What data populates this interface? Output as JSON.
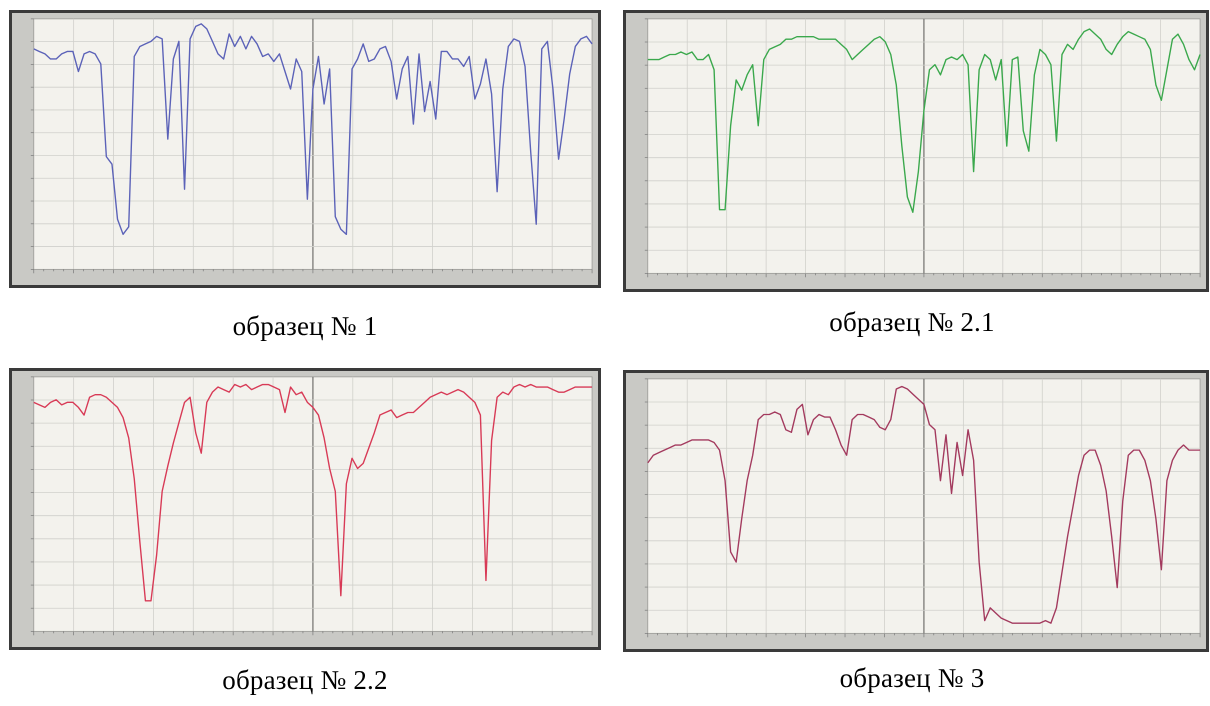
{
  "captions": [
    "образец № 1",
    "образец № 2.1",
    "образец № 2.2",
    "образец № 3"
  ],
  "chart_data": [
    {
      "type": "line",
      "title": "образец № 1",
      "ylim": [
        0,
        100
      ],
      "grid": true,
      "series": [
        {
          "color": "#5b62b8",
          "x": [
            0,
            1,
            2,
            3,
            4,
            5,
            6,
            7,
            8,
            9,
            10,
            11,
            12,
            13,
            14,
            15,
            16,
            17,
            18,
            19,
            20,
            21,
            22,
            23,
            24,
            25,
            26,
            27,
            28,
            29,
            30,
            31,
            32,
            33,
            34,
            35,
            36,
            37,
            38,
            39,
            40,
            41,
            42,
            43,
            44,
            45,
            46,
            47,
            48,
            49,
            50,
            51,
            52,
            53,
            54,
            55,
            56,
            57,
            58,
            59,
            60,
            61,
            62,
            63,
            64,
            65,
            66,
            67,
            68,
            69,
            70,
            71,
            72,
            73,
            74,
            75,
            76,
            77,
            78,
            79,
            80,
            81,
            82,
            83,
            84,
            85,
            86,
            87,
            88,
            89,
            90,
            91,
            92,
            93,
            94,
            95,
            96,
            97,
            98,
            99,
            100
          ],
          "values": [
            88,
            87,
            86,
            84,
            84,
            86,
            87,
            87,
            79,
            86,
            87,
            86,
            82,
            45,
            42,
            20,
            14,
            17,
            85,
            89,
            90,
            91,
            93,
            92,
            52,
            84,
            91,
            32,
            92,
            97,
            98,
            96,
            91,
            86,
            84,
            94,
            89,
            93,
            88,
            93,
            90,
            85,
            86,
            83,
            86,
            79,
            72,
            84,
            79,
            28,
            72,
            85,
            66,
            80,
            21,
            16,
            14,
            80,
            84,
            90,
            83,
            84,
            88,
            89,
            83,
            68,
            80,
            85,
            58,
            86,
            63,
            75,
            60,
            87,
            87,
            84,
            84,
            81,
            85,
            68,
            74,
            84,
            70,
            31,
            72,
            89,
            92,
            91,
            81,
            47,
            18,
            88,
            91,
            72,
            44,
            60,
            78,
            89,
            92,
            93,
            90
          ]
        }
      ]
    },
    {
      "type": "line",
      "title": "образец № 2.1",
      "ylim": [
        0,
        100
      ],
      "grid": true,
      "series": [
        {
          "color": "#3aa84c",
          "x": [
            0,
            1,
            2,
            3,
            4,
            5,
            6,
            7,
            8,
            9,
            10,
            11,
            12,
            13,
            14,
            15,
            16,
            17,
            18,
            19,
            20,
            21,
            22,
            23,
            24,
            25,
            26,
            27,
            28,
            29,
            30,
            31,
            32,
            33,
            34,
            35,
            36,
            37,
            38,
            39,
            40,
            41,
            42,
            43,
            44,
            45,
            46,
            47,
            48,
            49,
            50,
            51,
            52,
            53,
            54,
            55,
            56,
            57,
            58,
            59,
            60,
            61,
            62,
            63,
            64,
            65,
            66,
            67,
            68,
            69,
            70,
            71,
            72,
            73,
            74,
            75,
            76,
            77,
            78,
            79,
            80,
            81,
            82,
            83,
            84,
            85,
            86,
            87,
            88,
            89,
            90,
            91,
            92,
            93,
            94,
            95,
            96,
            97,
            98,
            99,
            100
          ],
          "values": [
            84,
            84,
            84,
            85,
            86,
            86,
            87,
            86,
            87,
            84,
            84,
            86,
            80,
            25,
            25,
            58,
            76,
            72,
            78,
            82,
            58,
            84,
            88,
            89,
            90,
            92,
            92,
            93,
            93,
            93,
            93,
            92,
            92,
            92,
            92,
            90,
            88,
            84,
            86,
            88,
            90,
            92,
            93,
            91,
            86,
            74,
            50,
            30,
            24,
            40,
            64,
            80,
            82,
            78,
            84,
            85,
            84,
            86,
            82,
            40,
            80,
            86,
            84,
            76,
            84,
            50,
            84,
            85,
            56,
            48,
            78,
            88,
            86,
            82,
            52,
            86,
            90,
            88,
            92,
            95,
            96,
            94,
            92,
            88,
            86,
            90,
            93,
            95,
            94,
            93,
            92,
            88,
            74,
            68,
            80,
            92,
            94,
            90,
            84,
            80,
            86
          ]
        }
      ]
    },
    {
      "type": "line",
      "title": "образец № 2.2",
      "ylim": [
        0,
        100
      ],
      "grid": true,
      "series": [
        {
          "color": "#d83a56",
          "x": [
            0,
            1,
            2,
            3,
            4,
            5,
            6,
            7,
            8,
            9,
            10,
            11,
            12,
            13,
            14,
            15,
            16,
            17,
            18,
            19,
            20,
            21,
            22,
            23,
            24,
            25,
            26,
            27,
            28,
            29,
            30,
            31,
            32,
            33,
            34,
            35,
            36,
            37,
            38,
            39,
            40,
            41,
            42,
            43,
            44,
            45,
            46,
            47,
            48,
            49,
            50,
            51,
            52,
            53,
            54,
            55,
            56,
            57,
            58,
            59,
            60,
            61,
            62,
            63,
            64,
            65,
            66,
            67,
            68,
            69,
            70,
            71,
            72,
            73,
            74,
            75,
            76,
            77,
            78,
            79,
            80,
            81,
            82,
            83,
            84,
            85,
            86,
            87,
            88,
            89,
            90,
            91,
            92,
            93,
            94,
            95,
            96,
            97,
            98,
            99,
            100
          ],
          "values": [
            90,
            89,
            88,
            90,
            91,
            89,
            90,
            90,
            88,
            85,
            92,
            93,
            93,
            92,
            90,
            88,
            84,
            76,
            60,
            35,
            12,
            12,
            30,
            55,
            65,
            74,
            82,
            90,
            92,
            78,
            70,
            90,
            94,
            96,
            95,
            94,
            97,
            96,
            97,
            95,
            96,
            97,
            97,
            96,
            95,
            86,
            96,
            93,
            94,
            90,
            88,
            85,
            76,
            64,
            55,
            14,
            58,
            68,
            64,
            66,
            72,
            78,
            85,
            86,
            87,
            84,
            85,
            86,
            86,
            88,
            90,
            92,
            93,
            94,
            93,
            94,
            95,
            94,
            92,
            90,
            85,
            20,
            75,
            92,
            94,
            93,
            96,
            97,
            96,
            97,
            96,
            96,
            96,
            95,
            94,
            94,
            95,
            96,
            96,
            96,
            96
          ]
        }
      ]
    },
    {
      "type": "line",
      "title": "образец № 3",
      "ylim": [
        0,
        100
      ],
      "grid": true,
      "series": [
        {
          "color": "#a33a5e",
          "x": [
            0,
            1,
            2,
            3,
            4,
            5,
            6,
            7,
            8,
            9,
            10,
            11,
            12,
            13,
            14,
            15,
            16,
            17,
            18,
            19,
            20,
            21,
            22,
            23,
            24,
            25,
            26,
            27,
            28,
            29,
            30,
            31,
            32,
            33,
            34,
            35,
            36,
            37,
            38,
            39,
            40,
            41,
            42,
            43,
            44,
            45,
            46,
            47,
            48,
            49,
            50,
            51,
            52,
            53,
            54,
            55,
            56,
            57,
            58,
            59,
            60,
            61,
            62,
            63,
            64,
            65,
            66,
            67,
            68,
            69,
            70,
            71,
            72,
            73,
            74,
            75,
            76,
            77,
            78,
            79,
            80,
            81,
            82,
            83,
            84,
            85,
            86,
            87,
            88,
            89,
            90,
            91,
            92,
            93,
            94,
            95,
            96,
            97,
            98,
            99,
            100
          ],
          "values": [
            67,
            70,
            71,
            72,
            73,
            74,
            74,
            75,
            76,
            76,
            76,
            76,
            75,
            72,
            60,
            32,
            28,
            45,
            60,
            70,
            84,
            86,
            86,
            87,
            86,
            80,
            79,
            88,
            90,
            78,
            84,
            86,
            85,
            85,
            80,
            74,
            70,
            84,
            86,
            86,
            85,
            84,
            81,
            80,
            84,
            96,
            97,
            96,
            94,
            92,
            90,
            82,
            80,
            60,
            78,
            55,
            75,
            62,
            80,
            68,
            28,
            5,
            10,
            8,
            6,
            5,
            4,
            4,
            4,
            4,
            4,
            4,
            5,
            4,
            10,
            24,
            38,
            50,
            62,
            70,
            72,
            72,
            66,
            56,
            38,
            18,
            52,
            70,
            72,
            72,
            68,
            60,
            45,
            25,
            60,
            68,
            72,
            74,
            72,
            72,
            72
          ]
        }
      ]
    }
  ]
}
